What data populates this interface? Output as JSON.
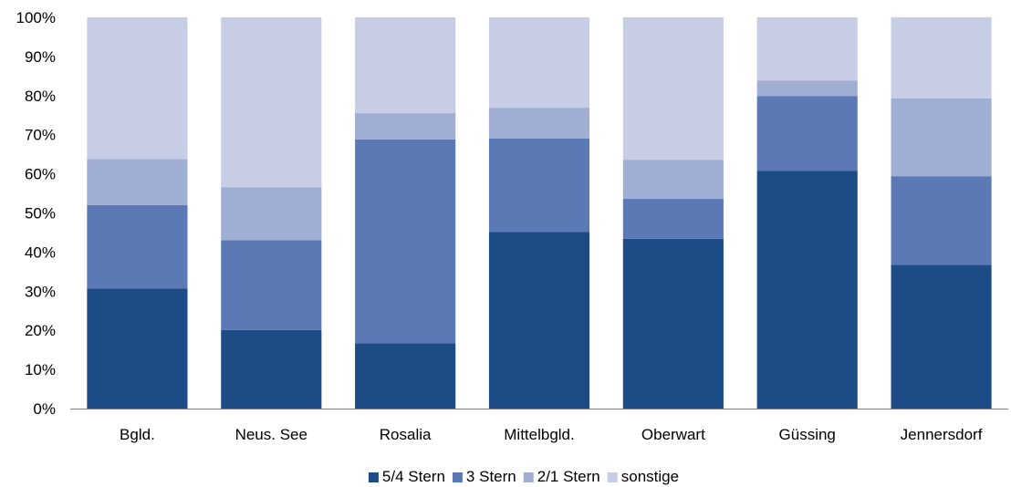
{
  "chart_data": {
    "type": "bar",
    "stacked": true,
    "title": "",
    "xlabel": "",
    "ylabel": "",
    "ylim": [
      0,
      100
    ],
    "yticks": [
      "0%",
      "10%",
      "20%",
      "30%",
      "40%",
      "50%",
      "60%",
      "70%",
      "80%",
      "90%",
      "100%"
    ],
    "grid": false,
    "legend_position": "bottom",
    "categories": [
      "Bgld.",
      "Neus. See",
      "Rosalia",
      "Mittelbgld.",
      "Oberwart",
      "Güssing",
      "Jennersdorf"
    ],
    "series": [
      {
        "name": "5/4 Stern",
        "color": "#1c4b85",
        "values": [
          30.7,
          20.1,
          16.7,
          45.1,
          43.4,
          60.8,
          36.7
        ]
      },
      {
        "name": "3 Stern",
        "color": "#5b7ab5",
        "values": [
          21.3,
          22.9,
          52.1,
          23.9,
          10.2,
          19.1,
          22.7
        ]
      },
      {
        "name": "2/1 Stern",
        "color": "#a0aed3",
        "values": [
          11.8,
          13.6,
          6.7,
          7.9,
          10.0,
          3.9,
          19.9
        ]
      },
      {
        "name": "sonstige",
        "color": "#c8cde6",
        "values": [
          36.2,
          43.4,
          24.5,
          23.1,
          36.4,
          16.2,
          20.7
        ]
      }
    ]
  }
}
